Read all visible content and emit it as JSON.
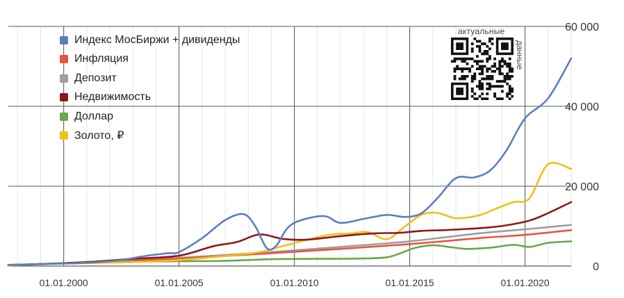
{
  "chart_data": {
    "type": "line",
    "x_ticks": [
      "01.01.2000",
      "01.01.2005",
      "01.01.2010",
      "01.01.2015",
      "01.01.2020"
    ],
    "y_ticks": [
      "0",
      "20 000",
      "40 000",
      "60 000"
    ],
    "ylim": [
      0,
      60000
    ],
    "xlim": [
      1997.6,
      2022
    ],
    "grid": true,
    "legend_position": "top-left",
    "series": [
      {
        "name": "Индекс МосБиржи + дивиденды",
        "color": "#5a7ec1",
        "x": [
          1997.6,
          1998.5,
          1999.5,
          2000.5,
          2001.5,
          2002.5,
          2003.5,
          2004.5,
          2005.0,
          2006.0,
          2007.0,
          2007.8,
          2008.3,
          2008.8,
          2009.2,
          2009.7,
          2010.3,
          2011.3,
          2012.0,
          2013.0,
          2014.0,
          2014.8,
          2015.5,
          2016.2,
          2017.0,
          2017.8,
          2018.5,
          2019.2,
          2020.0,
          2021.0,
          2022.0
        ],
        "y": [
          300,
          400,
          600,
          700,
          1000,
          1500,
          2500,
          3200,
          3500,
          7000,
          11500,
          13000,
          10000,
          4500,
          5000,
          9500,
          11500,
          12500,
          10800,
          11800,
          12800,
          12300,
          13200,
          17000,
          22000,
          22200,
          24000,
          29000,
          37000,
          42000,
          52000
        ]
      },
      {
        "name": "Инфляция",
        "color": "#e8553f",
        "x": [
          1997.6,
          2000,
          2003,
          2006,
          2009,
          2012,
          2015,
          2018,
          2020,
          2022
        ],
        "y": [
          200,
          700,
          1300,
          2200,
          3200,
          4300,
          5500,
          7000,
          7800,
          9000
        ]
      },
      {
        "name": "Депозит",
        "color": "#9e9e9e",
        "x": [
          1997.6,
          2000,
          2003,
          2006,
          2009,
          2012,
          2015,
          2018,
          2020,
          2022
        ],
        "y": [
          200,
          700,
          1400,
          2400,
          3500,
          4800,
          6200,
          8200,
          9200,
          10300
        ]
      },
      {
        "name": "Недвижимость",
        "color": "#8b1a1a",
        "x": [
          1997.6,
          1999,
          2001,
          2003,
          2005,
          2006.5,
          2007.5,
          2008.5,
          2009.5,
          2010.5,
          2012.0,
          2013.5,
          2014.5,
          2015.5,
          2016.5,
          2017.5,
          2018.5,
          2019.5,
          2020.5,
          2022.0
        ],
        "y": [
          300,
          500,
          1000,
          1800,
          2600,
          5000,
          6000,
          7900,
          6800,
          6600,
          7500,
          8200,
          8300,
          8800,
          9000,
          9300,
          9700,
          10500,
          12000,
          16000
        ]
      },
      {
        "name": "Доллар",
        "color": "#66a84b",
        "x": [
          1997.6,
          1999,
          2001,
          2003,
          2005,
          2007,
          2009,
          2011,
          2013,
          2014,
          2014.6,
          2015.2,
          2016.0,
          2016.8,
          2017.5,
          2018.5,
          2019.5,
          2020.2,
          2021.0,
          2022.0
        ],
        "y": [
          200,
          500,
          900,
          1100,
          1200,
          1300,
          1700,
          1800,
          1900,
          2200,
          3200,
          4500,
          5200,
          4700,
          4300,
          4600,
          5300,
          4800,
          5800,
          6200
        ]
      },
      {
        "name": "Золото, ₽",
        "color": "#f2bf1a",
        "x": [
          1997.6,
          2000,
          2003,
          2005,
          2007,
          2008.5,
          2009.5,
          2010.5,
          2011.5,
          2012.5,
          2013.2,
          2014.0,
          2014.7,
          2015.5,
          2016.2,
          2017.0,
          2018.0,
          2018.8,
          2019.5,
          2020.2,
          2021.0,
          2022.0
        ],
        "y": [
          200,
          600,
          1000,
          1500,
          2500,
          3500,
          5000,
          6500,
          7800,
          8200,
          8500,
          6700,
          9500,
          12800,
          13300,
          12000,
          12700,
          14500,
          16000,
          17000,
          25500,
          24300
        ]
      }
    ]
  },
  "qr": {
    "label_top": "актуальные",
    "label_side": "данные"
  }
}
